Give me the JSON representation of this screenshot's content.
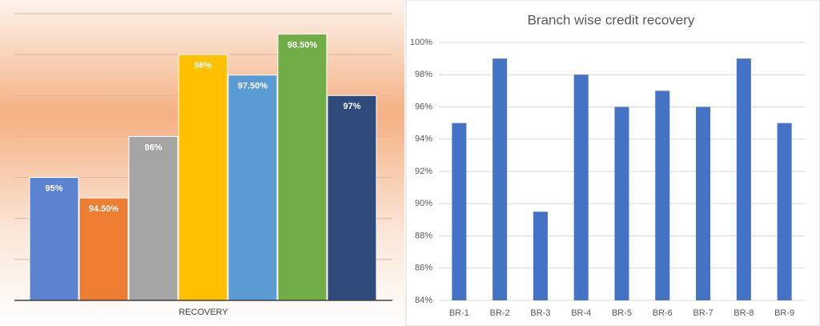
{
  "chart_data": [
    {
      "type": "bar",
      "categories": [
        "RECOVERY"
      ],
      "ylim": [
        92,
        99
      ],
      "grid": true,
      "series": [
        {
          "color": "#5b83cf",
          "values": [
            95
          ],
          "value_labels": [
            "95%"
          ]
        },
        {
          "color": "#ed7d31",
          "values": [
            94.5
          ],
          "value_labels": [
            "94.50%"
          ]
        },
        {
          "color": "#a5a5a5",
          "values": [
            96
          ],
          "value_labels": [
            "96%"
          ]
        },
        {
          "color": "#ffc000",
          "values": [
            98
          ],
          "value_labels": [
            "98%"
          ]
        },
        {
          "color": "#5b9bd5",
          "values": [
            97.5
          ],
          "value_labels": [
            "97.50%"
          ]
        },
        {
          "color": "#70ad47",
          "values": [
            98.5
          ],
          "value_labels": [
            "98.50%"
          ]
        },
        {
          "color": "#2f4b7c",
          "values": [
            97
          ],
          "value_labels": [
            "97%"
          ]
        }
      ]
    },
    {
      "type": "bar",
      "title": "Branch wise credit recovery",
      "categories": [
        "BR-1",
        "BR-2",
        "BR-3",
        "BR-4",
        "BR-5",
        "BR-6",
        "BR-7",
        "BR-8",
        "BR-9"
      ],
      "values": [
        95,
        99,
        89.5,
        98,
        96,
        97,
        96,
        99,
        95
      ],
      "color": "#4472c4",
      "ylim": [
        84,
        100
      ],
      "grid": true,
      "yticks": [
        {
          "value": 84,
          "label": "84%"
        },
        {
          "value": 86,
          "label": "86%"
        },
        {
          "value": 88,
          "label": "88%"
        },
        {
          "value": 90,
          "label": "90%"
        },
        {
          "value": 92,
          "label": "92%"
        },
        {
          "value": 94,
          "label": "94%"
        },
        {
          "value": 96,
          "label": "96%"
        },
        {
          "value": 98,
          "label": "98%"
        },
        {
          "value": 100,
          "label": "100%"
        }
      ]
    }
  ]
}
